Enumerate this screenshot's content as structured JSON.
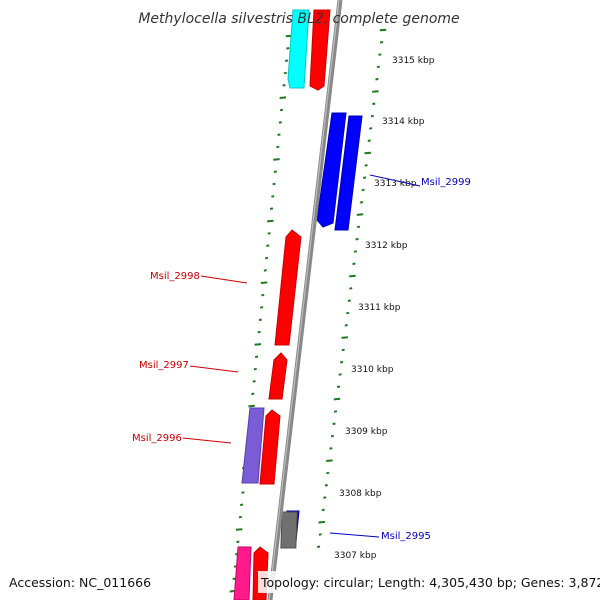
{
  "title": "Methylocella silvestris BL2, complete genome",
  "footer": {
    "accession": "Accession: NC_011666",
    "topology": "Topology: circular; Length: 4,305,430 bp; Genes: 3,872"
  },
  "colors": {
    "backbone": "#888888",
    "tick_marks": "#1e7a1e",
    "forward_gene": "#ff0000",
    "reverse_gene": "#0000ff",
    "cyan_gene": "#00ffff",
    "purple_gene": "#7a5cd6",
    "pink_gene": "#ff1a8c",
    "gray_gene": "#707070",
    "label_red": "#cc0000",
    "label_blue": "#0000bb"
  },
  "ticks": [
    {
      "label": "3315 kbp"
    },
    {
      "label": "3314 kbp"
    },
    {
      "label": "3313 kbp"
    },
    {
      "label": "3312 kbp"
    },
    {
      "label": "3311 kbp"
    },
    {
      "label": "3310 kbp"
    },
    {
      "label": "3309 kbp"
    },
    {
      "label": "3308 kbp"
    },
    {
      "label": "3307 kbp"
    }
  ],
  "gene_labels": [
    {
      "name": "Msil_2999",
      "color": "#0000bb"
    },
    {
      "name": "Msil_2998",
      "color": "#cc0000"
    },
    {
      "name": "Msil_2997",
      "color": "#cc0000"
    },
    {
      "name": "Msil_2996",
      "color": "#cc0000"
    },
    {
      "name": "Msil_2995",
      "color": "#0000bb"
    }
  ]
}
